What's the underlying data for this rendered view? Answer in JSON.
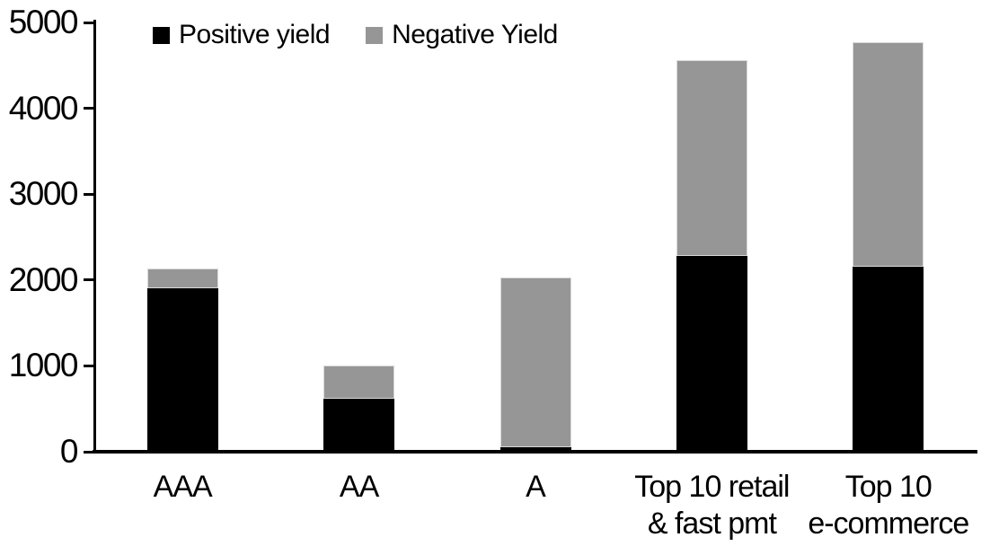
{
  "chart_data": {
    "type": "bar",
    "stacked": true,
    "title": "",
    "xlabel": "",
    "ylabel": "",
    "categories": [
      "AAA",
      "AA",
      "A",
      "Top 10 retail & fast pmt",
      "Top 10 e-commerce"
    ],
    "category_label_lines": [
      [
        "AAA"
      ],
      [
        "AA"
      ],
      [
        "A"
      ],
      [
        "Top 10 retail",
        "& fast pmt"
      ],
      [
        "Top 10",
        "e-commerce"
      ]
    ],
    "series": [
      {
        "name": "Positive yield",
        "color": "#000000",
        "values": [
          1900,
          620,
          50,
          2280,
          2150
        ]
      },
      {
        "name": "Negative Yield",
        "color": "#969696",
        "values": [
          230,
          380,
          1980,
          2280,
          2620
        ]
      }
    ],
    "stack_totals": [
      2130,
      1000,
      2030,
      4560,
      4770
    ],
    "ylim": [
      0,
      5000
    ],
    "y_ticks": [
      0,
      1000,
      2000,
      3000,
      4000,
      5000
    ],
    "grid": false,
    "legend_position": "top"
  },
  "colors": {
    "background": "#ffffff",
    "axis": "#000000",
    "positive": "#000000",
    "negative": "#969696",
    "bar_outline": "#d9d9d9"
  }
}
